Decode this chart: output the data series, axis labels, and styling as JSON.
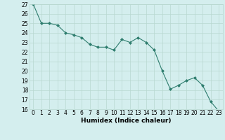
{
  "x": [
    0,
    1,
    2,
    3,
    4,
    5,
    6,
    7,
    8,
    9,
    10,
    11,
    12,
    13,
    14,
    15,
    16,
    17,
    18,
    19,
    20,
    21,
    22,
    23
  ],
  "y": [
    27,
    25,
    25,
    24.8,
    24,
    23.8,
    23.5,
    22.8,
    22.5,
    22.5,
    22.2,
    23.3,
    23,
    23.5,
    23,
    22.2,
    20,
    18.1,
    18.5,
    19,
    19.3,
    18.5,
    16.8,
    15.8
  ],
  "line_color": "#2e7d6e",
  "marker": "D",
  "marker_size": 2,
  "bg_color": "#d4eeee",
  "grid_color": "#b8d8d0",
  "xlabel": "Humidex (Indice chaleur)",
  "ylim": [
    16,
    27
  ],
  "xlim": [
    -0.5,
    23.5
  ],
  "yticks": [
    16,
    17,
    18,
    19,
    20,
    21,
    22,
    23,
    24,
    25,
    26,
    27
  ],
  "xticks": [
    0,
    1,
    2,
    3,
    4,
    5,
    6,
    7,
    8,
    9,
    10,
    11,
    12,
    13,
    14,
    15,
    16,
    17,
    18,
    19,
    20,
    21,
    22,
    23
  ],
  "label_fontsize": 6.5,
  "tick_fontsize": 5.5
}
